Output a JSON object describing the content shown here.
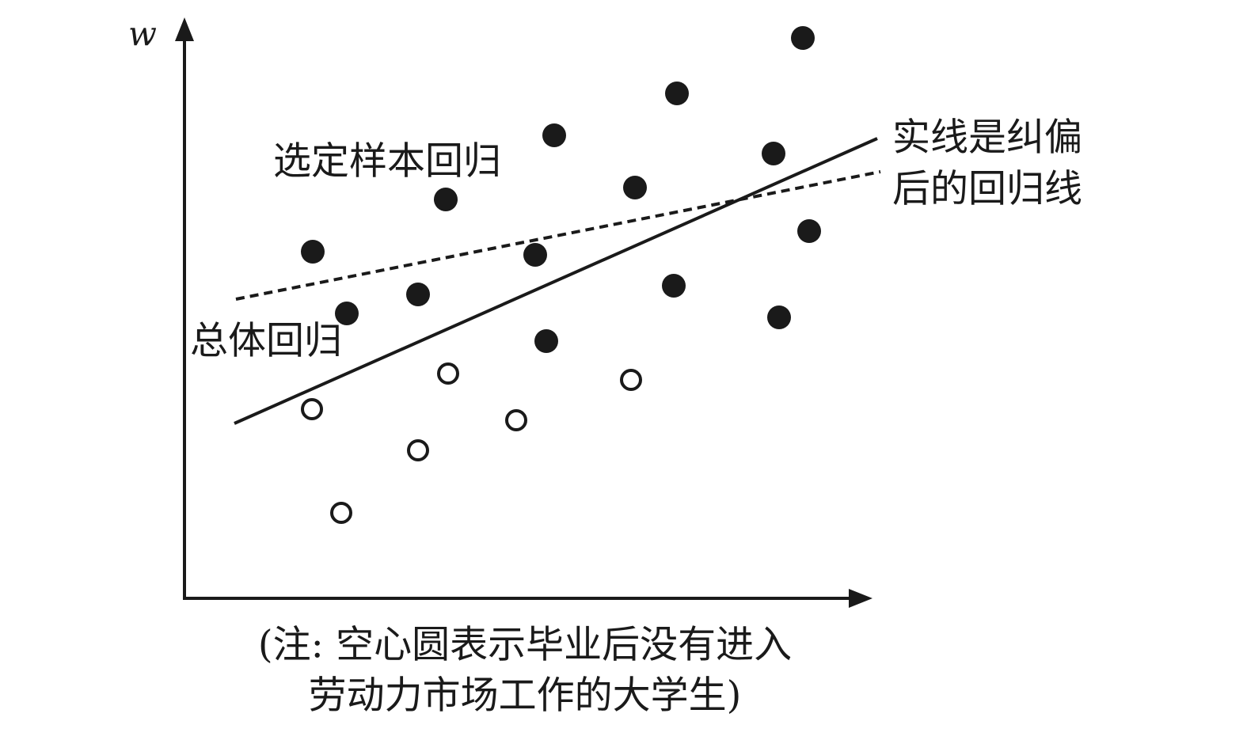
{
  "axis": {
    "y_label": "w"
  },
  "labels": {
    "selected_sample": "选定样本回归",
    "population": "总体回归",
    "corrected": [
      "实线是纠偏",
      "后的回归线"
    ]
  },
  "note": [
    "(注: 空心圆表示毕业后没有进入",
    "劳动力市场工作的大学生)"
  ]
}
